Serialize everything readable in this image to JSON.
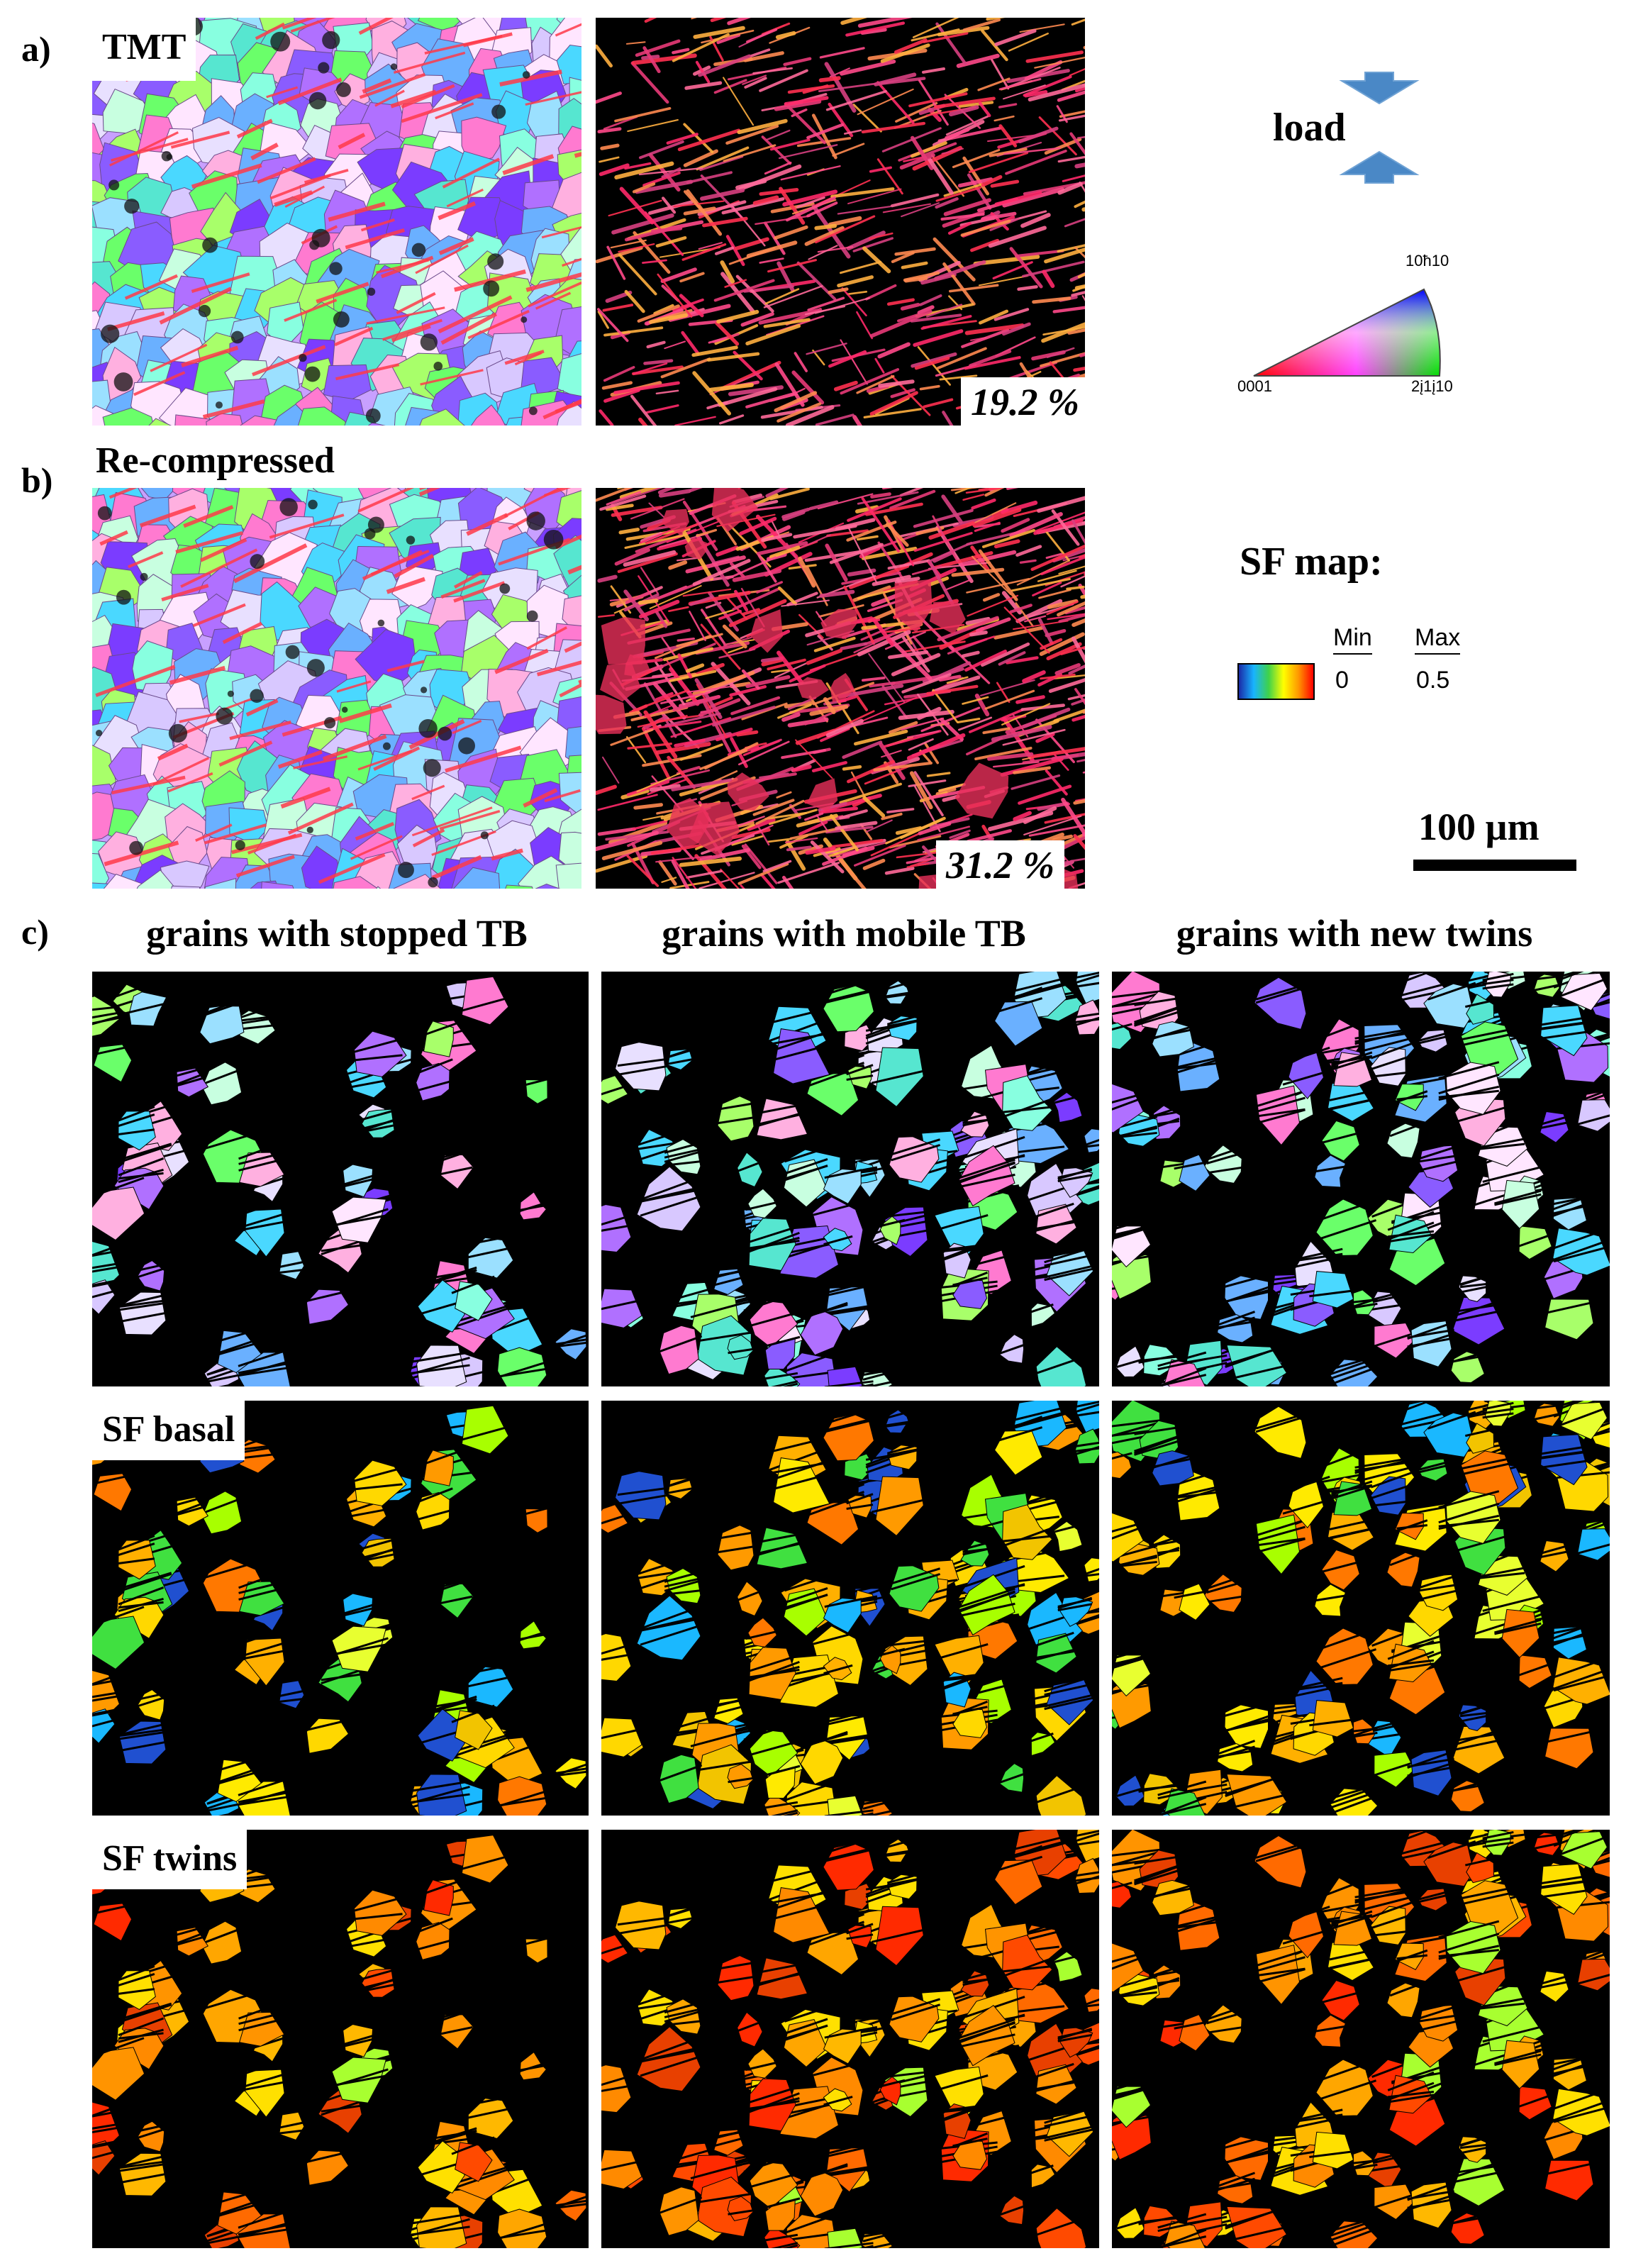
{
  "panels": {
    "a": {
      "letter": "a)",
      "label": "TMT",
      "twin_fraction": "19.2 %"
    },
    "b": {
      "letter": "b)",
      "label": "Re-compressed",
      "twin_fraction": "31.2 %"
    },
    "c": {
      "letter": "c)",
      "columns": [
        "grains with stopped TB",
        "grains with mobile TB",
        "grains with new twins"
      ],
      "rows": [
        "",
        "SF basal",
        "SF twins"
      ]
    }
  },
  "legend": {
    "load_label": "load",
    "ipf_corners": {
      "top": "10ħ10",
      "left": "0001",
      "right": "2į1į10"
    },
    "sf_map_title": "SF map:",
    "sf_min_label": "Min",
    "sf_min_value": "0",
    "sf_max_label": "Max",
    "sf_max_value": "0.5",
    "scale_bar": "100 µm"
  },
  "colors": {
    "load_arrow": "#4a88c6",
    "background_map": "#000000"
  }
}
